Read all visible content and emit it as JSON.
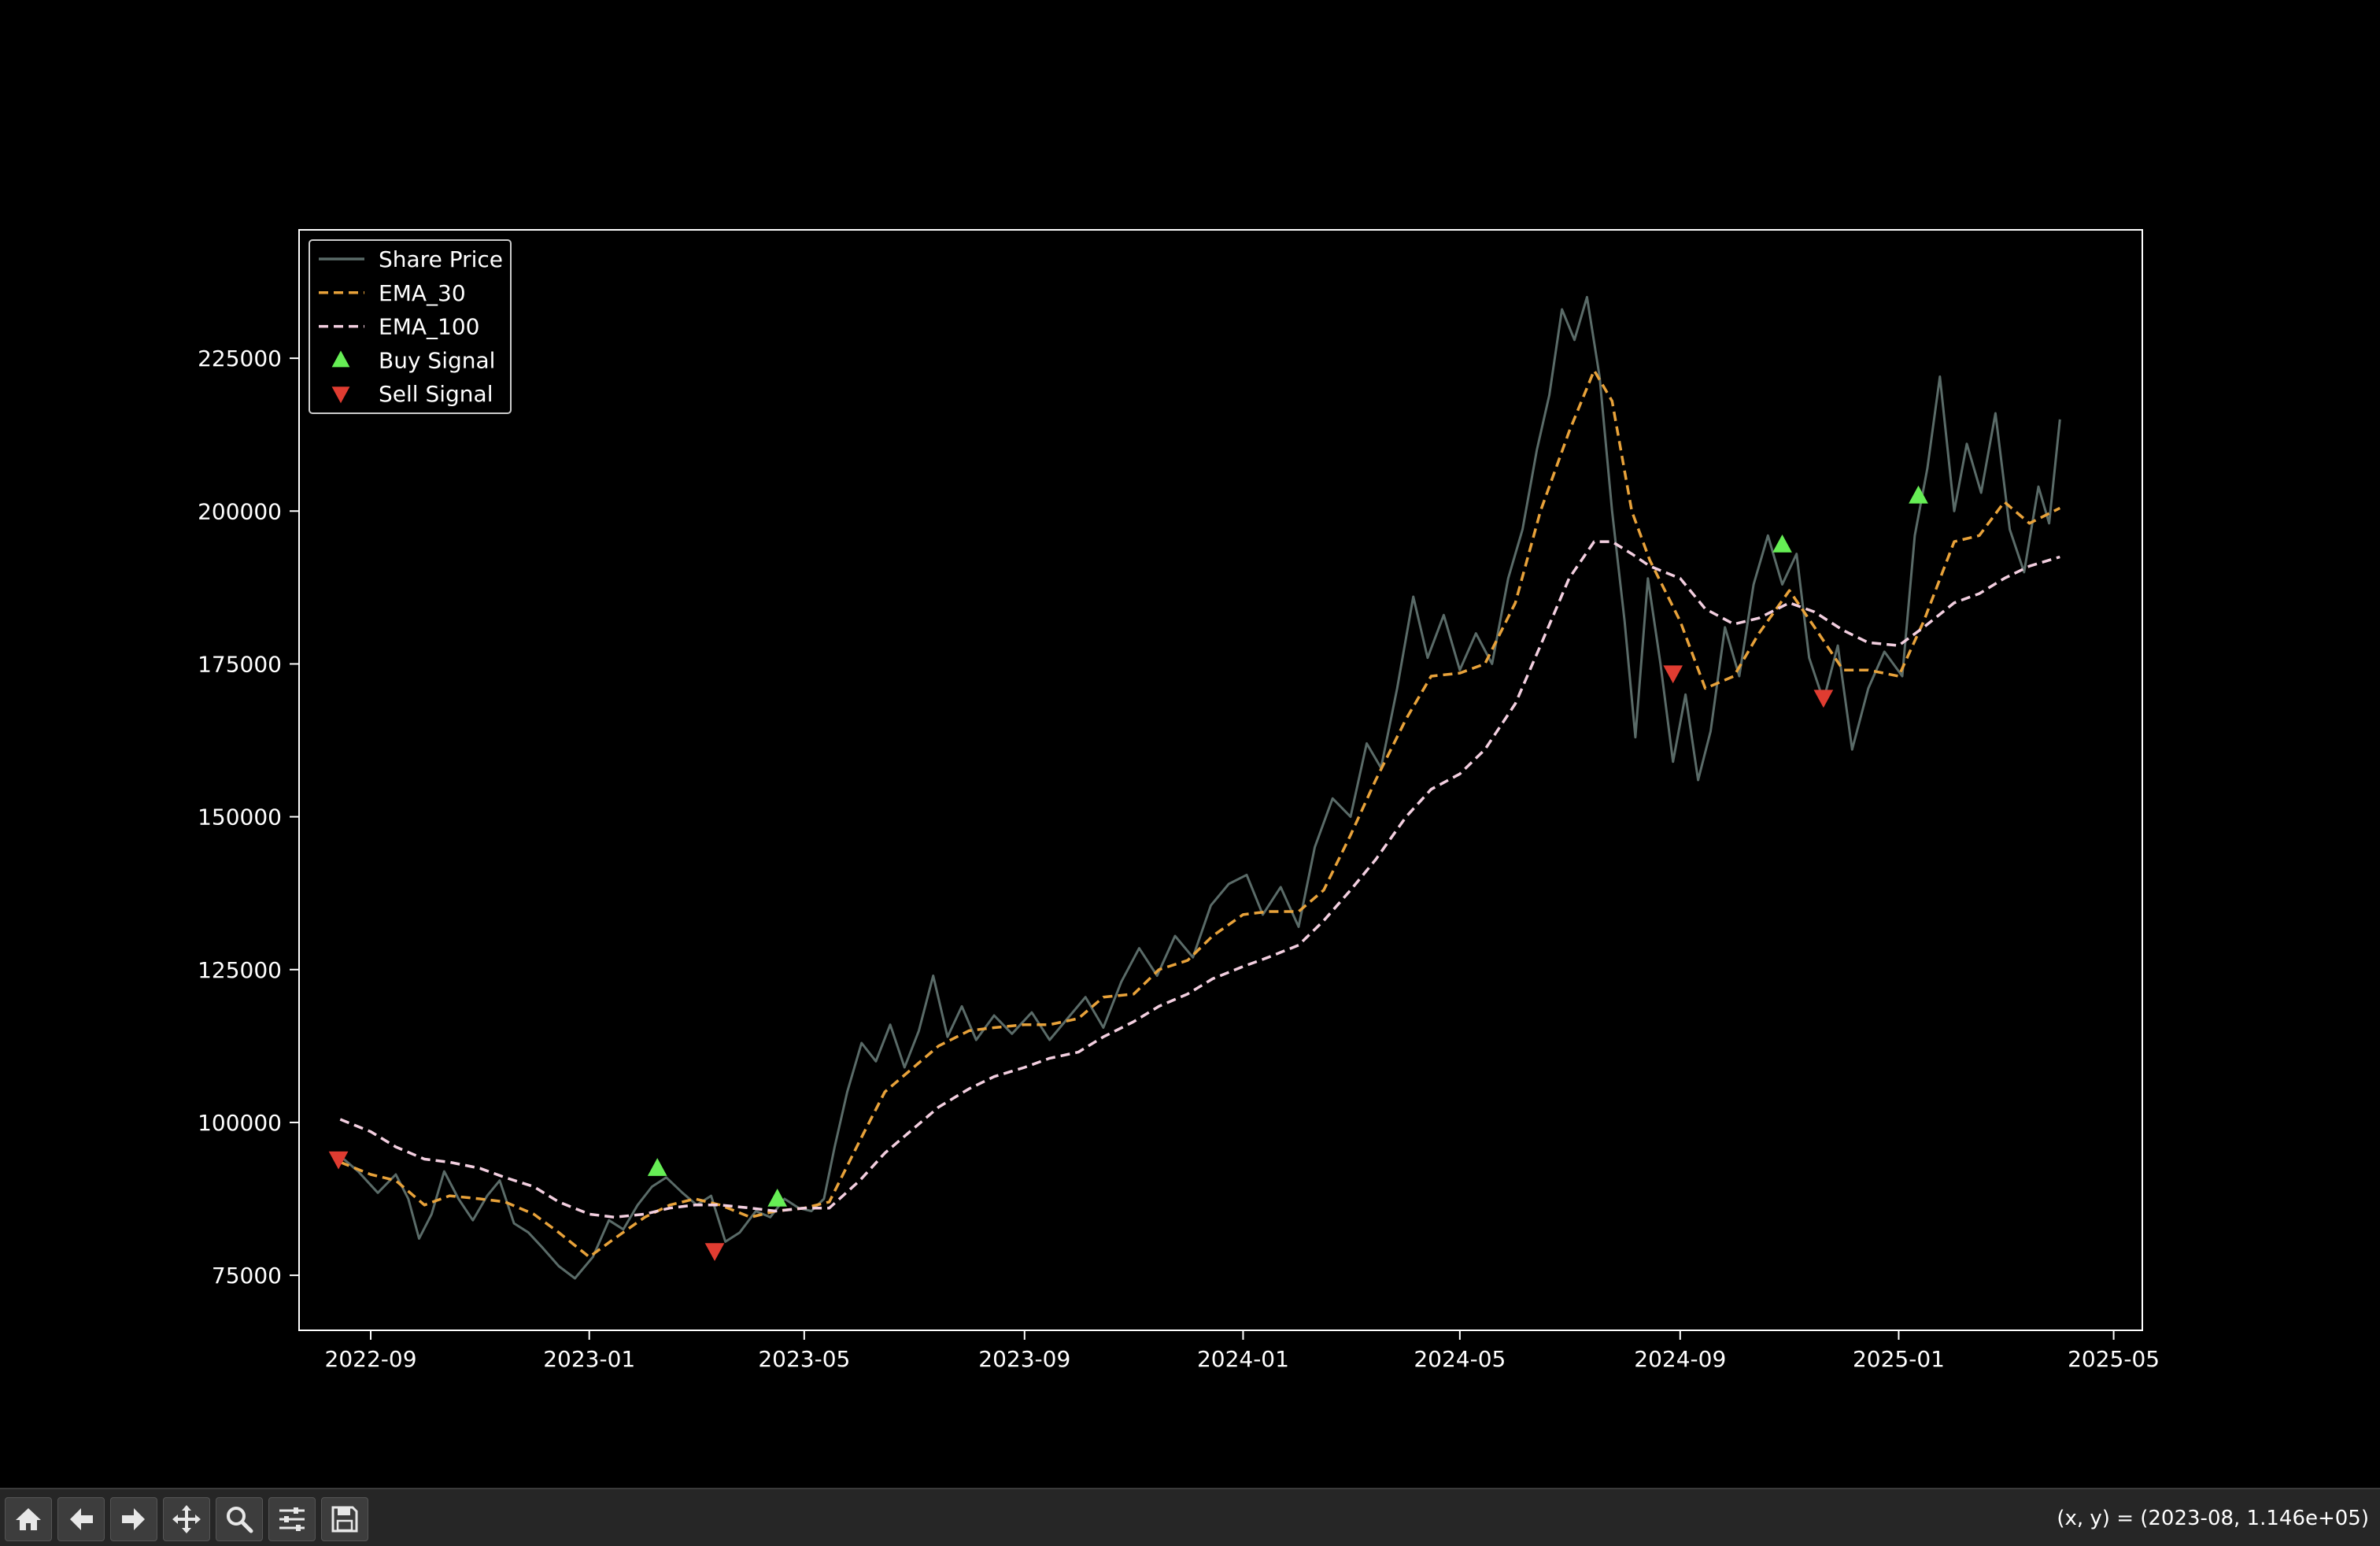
{
  "chart_data": {
    "type": "line",
    "title": "",
    "xlabel": "",
    "ylabel": "",
    "xlim": [
      "2022-07-23",
      "2025-05-17"
    ],
    "ylim": [
      66000,
      246000
    ],
    "x_ticks": [
      "2022-09",
      "2023-01",
      "2023-05",
      "2023-09",
      "2024-01",
      "2024-05",
      "2024-09",
      "2025-01",
      "2025-05"
    ],
    "y_ticks": [
      75000,
      100000,
      125000,
      150000,
      175000,
      200000,
      225000
    ],
    "legend_position": "upper-left",
    "grid": false,
    "series": [
      {
        "name": "Share Price",
        "style": "solid",
        "color": "#5a6b68",
        "points": [
          [
            "2022-08-15",
            94500
          ],
          [
            "2022-08-25",
            92000
          ],
          [
            "2022-09-05",
            88500
          ],
          [
            "2022-09-15",
            91500
          ],
          [
            "2022-09-22",
            87500
          ],
          [
            "2022-09-28",
            81000
          ],
          [
            "2022-10-05",
            85000
          ],
          [
            "2022-10-12",
            92000
          ],
          [
            "2022-10-20",
            87500
          ],
          [
            "2022-10-28",
            84000
          ],
          [
            "2022-11-05",
            88000
          ],
          [
            "2022-11-12",
            90500
          ],
          [
            "2022-11-20",
            83500
          ],
          [
            "2022-11-28",
            82000
          ],
          [
            "2022-12-06",
            79500
          ],
          [
            "2022-12-15",
            76500
          ],
          [
            "2022-12-24",
            74500
          ],
          [
            "2023-01-03",
            78000
          ],
          [
            "2023-01-12",
            84000
          ],
          [
            "2023-01-20",
            82500
          ],
          [
            "2023-01-28",
            86500
          ],
          [
            "2023-02-05",
            89500
          ],
          [
            "2023-02-13",
            91000
          ],
          [
            "2023-02-22",
            88500
          ],
          [
            "2023-03-02",
            86500
          ],
          [
            "2023-03-10",
            88000
          ],
          [
            "2023-03-18",
            80500
          ],
          [
            "2023-03-26",
            82000
          ],
          [
            "2023-04-04",
            85500
          ],
          [
            "2023-04-12",
            84500
          ],
          [
            "2023-04-20",
            87500
          ],
          [
            "2023-04-28",
            86000
          ],
          [
            "2023-05-05",
            85500
          ],
          [
            "2023-05-12",
            87500
          ],
          [
            "2023-05-18",
            96000
          ],
          [
            "2023-05-25",
            105000
          ],
          [
            "2023-06-02",
            113000
          ],
          [
            "2023-06-10",
            110000
          ],
          [
            "2023-06-18",
            116000
          ],
          [
            "2023-06-26",
            109000
          ],
          [
            "2023-07-04",
            115000
          ],
          [
            "2023-07-12",
            124000
          ],
          [
            "2023-07-20",
            114000
          ],
          [
            "2023-07-28",
            119000
          ],
          [
            "2023-08-05",
            113500
          ],
          [
            "2023-08-15",
            117500
          ],
          [
            "2023-08-25",
            114500
          ],
          [
            "2023-09-05",
            118000
          ],
          [
            "2023-09-15",
            113500
          ],
          [
            "2023-09-25",
            117000
          ],
          [
            "2023-10-05",
            120500
          ],
          [
            "2023-10-15",
            115500
          ],
          [
            "2023-10-25",
            123000
          ],
          [
            "2023-11-04",
            128500
          ],
          [
            "2023-11-14",
            124000
          ],
          [
            "2023-11-24",
            130500
          ],
          [
            "2023-12-04",
            127000
          ],
          [
            "2023-12-14",
            135500
          ],
          [
            "2023-12-24",
            139000
          ],
          [
            "2024-01-03",
            140500
          ],
          [
            "2024-01-12",
            134000
          ],
          [
            "2024-01-22",
            138500
          ],
          [
            "2024-02-01",
            132000
          ],
          [
            "2024-02-10",
            145000
          ],
          [
            "2024-02-20",
            153000
          ],
          [
            "2024-03-01",
            150000
          ],
          [
            "2024-03-10",
            162000
          ],
          [
            "2024-03-18",
            158000
          ],
          [
            "2024-03-27",
            171000
          ],
          [
            "2024-04-05",
            186000
          ],
          [
            "2024-04-13",
            176000
          ],
          [
            "2024-04-22",
            183000
          ],
          [
            "2024-05-01",
            174000
          ],
          [
            "2024-05-10",
            180000
          ],
          [
            "2024-05-19",
            175000
          ],
          [
            "2024-05-28",
            189000
          ],
          [
            "2024-06-05",
            197000
          ],
          [
            "2024-06-13",
            210000
          ],
          [
            "2024-06-20",
            219000
          ],
          [
            "2024-06-27",
            233000
          ],
          [
            "2024-07-04",
            228000
          ],
          [
            "2024-07-11",
            235000
          ],
          [
            "2024-07-18",
            222000
          ],
          [
            "2024-07-25",
            200000
          ],
          [
            "2024-08-01",
            182000
          ],
          [
            "2024-08-07",
            163000
          ],
          [
            "2024-08-14",
            189000
          ],
          [
            "2024-08-21",
            175000
          ],
          [
            "2024-08-28",
            159000
          ],
          [
            "2024-09-04",
            170000
          ],
          [
            "2024-09-11",
            156000
          ],
          [
            "2024-09-18",
            164000
          ],
          [
            "2024-09-26",
            181000
          ],
          [
            "2024-10-04",
            173000
          ],
          [
            "2024-10-12",
            188000
          ],
          [
            "2024-10-20",
            196000
          ],
          [
            "2024-10-28",
            188000
          ],
          [
            "2024-11-05",
            193000
          ],
          [
            "2024-11-12",
            176000
          ],
          [
            "2024-11-20",
            169000
          ],
          [
            "2024-11-28",
            178000
          ],
          [
            "2024-12-06",
            161000
          ],
          [
            "2024-12-15",
            171000
          ],
          [
            "2024-12-24",
            177000
          ],
          [
            "2025-01-03",
            173000
          ],
          [
            "2025-01-10",
            196000
          ],
          [
            "2025-01-17",
            207000
          ],
          [
            "2025-01-24",
            222000
          ],
          [
            "2025-02-01",
            200000
          ],
          [
            "2025-02-08",
            211000
          ],
          [
            "2025-02-16",
            203000
          ],
          [
            "2025-02-24",
            216000
          ],
          [
            "2025-03-04",
            197000
          ],
          [
            "2025-03-12",
            190000
          ],
          [
            "2025-03-20",
            204000
          ],
          [
            "2025-03-26",
            198000
          ],
          [
            "2025-04-01",
            215000
          ]
        ]
      },
      {
        "name": "EMA_30",
        "style": "dashed",
        "color": "#e8a23a",
        "points": [
          [
            "2022-08-15",
            93500
          ],
          [
            "2022-09-01",
            91500
          ],
          [
            "2022-09-15",
            90500
          ],
          [
            "2022-10-01",
            86500
          ],
          [
            "2022-10-15",
            88000
          ],
          [
            "2022-11-01",
            87500
          ],
          [
            "2022-11-15",
            87000
          ],
          [
            "2022-12-01",
            85000
          ],
          [
            "2022-12-15",
            82000
          ],
          [
            "2023-01-01",
            78000
          ],
          [
            "2023-01-15",
            81000
          ],
          [
            "2023-02-01",
            84500
          ],
          [
            "2023-02-15",
            86500
          ],
          [
            "2023-03-01",
            87500
          ],
          [
            "2023-03-15",
            86500
          ],
          [
            "2023-04-01",
            84500
          ],
          [
            "2023-04-15",
            85500
          ],
          [
            "2023-05-01",
            86000
          ],
          [
            "2023-05-15",
            87000
          ],
          [
            "2023-06-01",
            97000
          ],
          [
            "2023-06-15",
            105000
          ],
          [
            "2023-07-01",
            109000
          ],
          [
            "2023-07-15",
            112500
          ],
          [
            "2023-08-01",
            115000
          ],
          [
            "2023-08-15",
            115500
          ],
          [
            "2023-09-01",
            116000
          ],
          [
            "2023-09-15",
            116000
          ],
          [
            "2023-10-01",
            117000
          ],
          [
            "2023-10-15",
            120500
          ],
          [
            "2023-11-01",
            121000
          ],
          [
            "2023-11-15",
            125000
          ],
          [
            "2023-12-01",
            126500
          ],
          [
            "2023-12-15",
            130500
          ],
          [
            "2024-01-01",
            134000
          ],
          [
            "2024-01-15",
            134500
          ],
          [
            "2024-02-01",
            134500
          ],
          [
            "2024-02-15",
            138000
          ],
          [
            "2024-03-01",
            147000
          ],
          [
            "2024-03-15",
            156000
          ],
          [
            "2024-04-01",
            166000
          ],
          [
            "2024-04-15",
            173000
          ],
          [
            "2024-05-01",
            173500
          ],
          [
            "2024-05-15",
            175000
          ],
          [
            "2024-06-01",
            185000
          ],
          [
            "2024-06-15",
            200000
          ],
          [
            "2024-07-01",
            213000
          ],
          [
            "2024-07-15",
            223000
          ],
          [
            "2024-07-25",
            218000
          ],
          [
            "2024-08-05",
            200000
          ],
          [
            "2024-08-15",
            192000
          ],
          [
            "2024-09-01",
            182000
          ],
          [
            "2024-09-15",
            171000
          ],
          [
            "2024-10-01",
            173000
          ],
          [
            "2024-10-15",
            180000
          ],
          [
            "2024-11-01",
            187000
          ],
          [
            "2024-11-15",
            181000
          ],
          [
            "2024-12-01",
            174000
          ],
          [
            "2024-12-15",
            174000
          ],
          [
            "2025-01-01",
            173000
          ],
          [
            "2025-01-15",
            182000
          ],
          [
            "2025-02-01",
            195000
          ],
          [
            "2025-02-15",
            196000
          ],
          [
            "2025-03-01",
            201500
          ],
          [
            "2025-03-15",
            198000
          ],
          [
            "2025-04-01",
            200500
          ]
        ]
      },
      {
        "name": "EMA_100",
        "style": "dashed",
        "color": "#f3cfe0",
        "points": [
          [
            "2022-08-15",
            100500
          ],
          [
            "2022-09-01",
            98500
          ],
          [
            "2022-09-15",
            96000
          ],
          [
            "2022-10-01",
            94000
          ],
          [
            "2022-10-15",
            93500
          ],
          [
            "2022-11-01",
            92500
          ],
          [
            "2022-11-15",
            91000
          ],
          [
            "2022-12-01",
            89500
          ],
          [
            "2022-12-15",
            87000
          ],
          [
            "2023-01-01",
            85000
          ],
          [
            "2023-01-15",
            84500
          ],
          [
            "2023-02-01",
            85000
          ],
          [
            "2023-02-15",
            86000
          ],
          [
            "2023-03-01",
            86500
          ],
          [
            "2023-03-15",
            86500
          ],
          [
            "2023-04-01",
            86000
          ],
          [
            "2023-04-15",
            85500
          ],
          [
            "2023-05-01",
            86000
          ],
          [
            "2023-05-15",
            86000
          ],
          [
            "2023-06-01",
            90500
          ],
          [
            "2023-06-15",
            95000
          ],
          [
            "2023-07-01",
            99000
          ],
          [
            "2023-07-15",
            102500
          ],
          [
            "2023-08-01",
            105500
          ],
          [
            "2023-08-15",
            107500
          ],
          [
            "2023-09-01",
            109000
          ],
          [
            "2023-09-15",
            110500
          ],
          [
            "2023-10-01",
            111500
          ],
          [
            "2023-10-15",
            114000
          ],
          [
            "2023-11-01",
            116500
          ],
          [
            "2023-11-15",
            119000
          ],
          [
            "2023-12-01",
            121000
          ],
          [
            "2023-12-15",
            123500
          ],
          [
            "2024-01-01",
            125500
          ],
          [
            "2024-01-15",
            127000
          ],
          [
            "2024-02-01",
            129000
          ],
          [
            "2024-02-15",
            133000
          ],
          [
            "2024-03-01",
            138000
          ],
          [
            "2024-03-15",
            143000
          ],
          [
            "2024-04-01",
            150000
          ],
          [
            "2024-04-15",
            154500
          ],
          [
            "2024-05-01",
            157000
          ],
          [
            "2024-05-15",
            161000
          ],
          [
            "2024-06-01",
            168500
          ],
          [
            "2024-06-15",
            178000
          ],
          [
            "2024-07-01",
            189000
          ],
          [
            "2024-07-15",
            195000
          ],
          [
            "2024-07-25",
            195000
          ],
          [
            "2024-08-05",
            193000
          ],
          [
            "2024-08-15",
            191000
          ],
          [
            "2024-09-01",
            189000
          ],
          [
            "2024-09-15",
            184000
          ],
          [
            "2024-10-01",
            181500
          ],
          [
            "2024-10-15",
            182500
          ],
          [
            "2024-11-01",
            185000
          ],
          [
            "2024-11-15",
            183500
          ],
          [
            "2024-12-01",
            180500
          ],
          [
            "2024-12-15",
            178500
          ],
          [
            "2025-01-01",
            178000
          ],
          [
            "2025-01-15",
            181000
          ],
          [
            "2025-02-01",
            185000
          ],
          [
            "2025-02-15",
            186500
          ],
          [
            "2025-03-01",
            189000
          ],
          [
            "2025-03-15",
            191000
          ],
          [
            "2025-04-01",
            192500
          ]
        ]
      }
    ],
    "markers": [
      {
        "name": "Buy Signal",
        "shape": "triangle-up",
        "color": "#66ee55",
        "points": [
          [
            "2023-02-08",
            92500
          ],
          [
            "2023-04-16",
            87500
          ],
          [
            "2024-10-28",
            194500
          ],
          [
            "2025-01-12",
            202500
          ]
        ]
      },
      {
        "name": "Sell Signal",
        "shape": "triangle-down",
        "color": "#e03c31",
        "points": [
          [
            "2022-08-14",
            94000
          ],
          [
            "2023-03-12",
            79000
          ],
          [
            "2024-08-28",
            173500
          ],
          [
            "2024-11-20",
            169500
          ]
        ]
      }
    ]
  },
  "toolbar": {
    "buttons": [
      {
        "name": "home-button",
        "icon": "home-icon"
      },
      {
        "name": "back-button",
        "icon": "arrow-left-icon"
      },
      {
        "name": "forward-button",
        "icon": "arrow-right-icon"
      },
      {
        "name": "pan-button",
        "icon": "move-icon"
      },
      {
        "name": "zoom-button",
        "icon": "magnifier-icon"
      },
      {
        "name": "configure-subplots-button",
        "icon": "sliders-icon"
      },
      {
        "name": "save-button",
        "icon": "floppy-disk-icon"
      }
    ],
    "coordinate_readout": "(x, y) = (2023-08, 1.146e+05)"
  }
}
